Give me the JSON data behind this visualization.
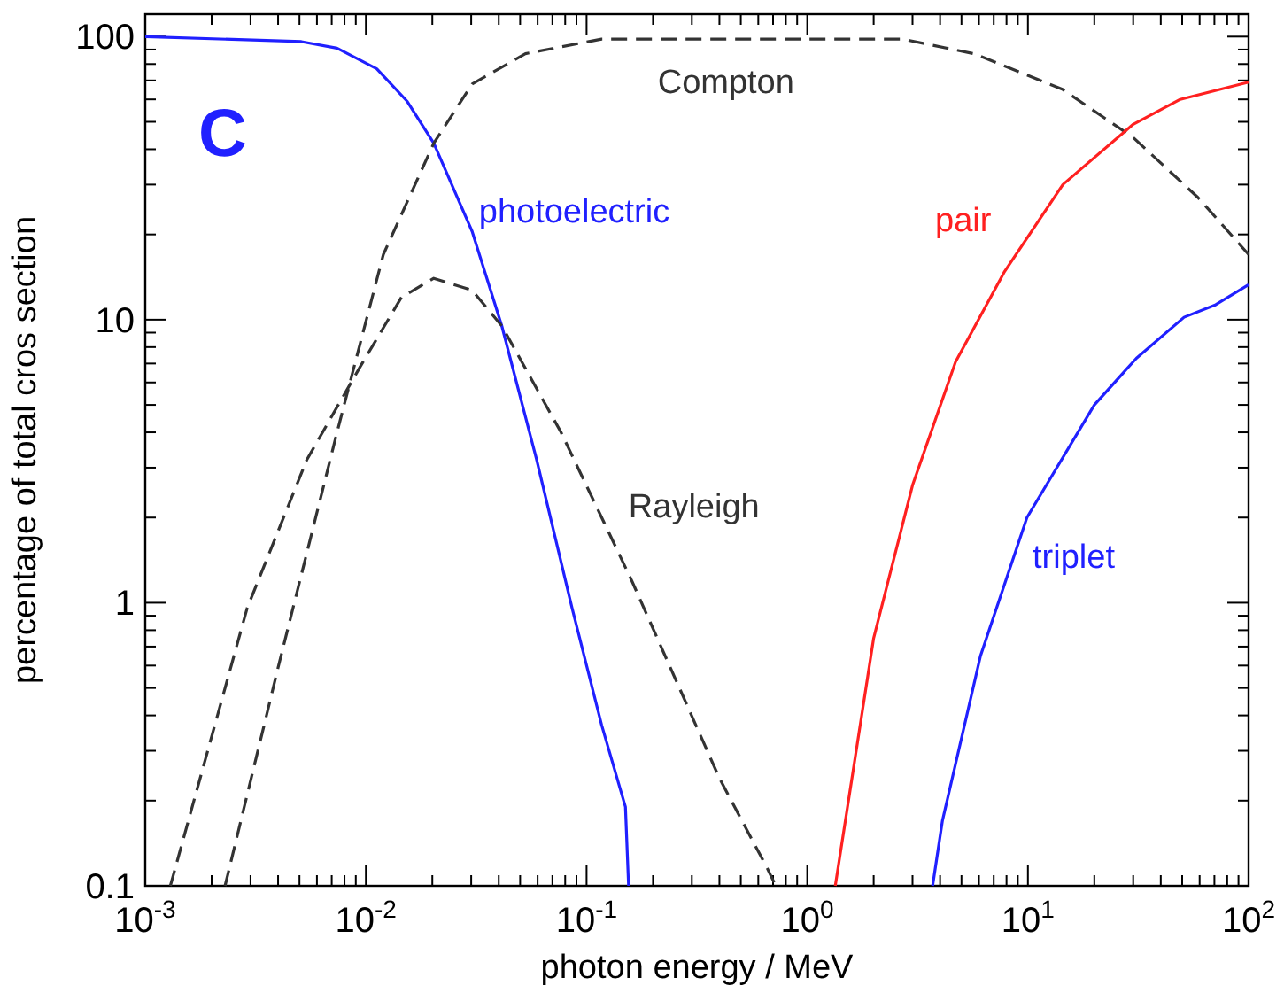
{
  "chart_data": {
    "type": "line",
    "xlabel": "photon energy  / MeV",
    "ylabel": "percentage of total cros section",
    "log": "xy",
    "xlim": [
      0.001,
      100
    ],
    "ylim": [
      0.1,
      120
    ],
    "xticks": [
      {
        "value": 0.001,
        "label": "10$^{-3}$"
      },
      {
        "value": 0.002,
        "label": null
      },
      {
        "value": 0.003,
        "label": null
      },
      {
        "value": 0.004,
        "label": null
      },
      {
        "value": 0.005,
        "label": null
      },
      {
        "value": 0.006,
        "label": null
      },
      {
        "value": 0.007,
        "label": null
      },
      {
        "value": 0.008,
        "label": null
      },
      {
        "value": 0.009,
        "label": null
      },
      {
        "value": 0.01,
        "label": "10$^{-2}$"
      },
      {
        "value": 0.02,
        "label": null
      },
      {
        "value": 0.03,
        "label": null
      },
      {
        "value": 0.04,
        "label": null
      },
      {
        "value": 0.05,
        "label": null
      },
      {
        "value": 0.06,
        "label": null
      },
      {
        "value": 0.07,
        "label": null
      },
      {
        "value": 0.08,
        "label": null
      },
      {
        "value": 0.09,
        "label": null
      },
      {
        "value": 0.1,
        "label": "10$^{-1}$"
      },
      {
        "value": 0.2,
        "label": null
      },
      {
        "value": 0.3,
        "label": null
      },
      {
        "value": 0.4,
        "label": null
      },
      {
        "value": 0.5,
        "label": null
      },
      {
        "value": 0.6,
        "label": null
      },
      {
        "value": 0.7,
        "label": null
      },
      {
        "value": 0.8,
        "label": null
      },
      {
        "value": 0.9,
        "label": null
      },
      {
        "value": 1,
        "label": "10$^{0}$"
      },
      {
        "value": 2,
        "label": null
      },
      {
        "value": 3,
        "label": null
      },
      {
        "value": 4,
        "label": null
      },
      {
        "value": 5,
        "label": null
      },
      {
        "value": 6,
        "label": null
      },
      {
        "value": 7,
        "label": null
      },
      {
        "value": 8,
        "label": null
      },
      {
        "value": 9,
        "label": null
      },
      {
        "value": 10,
        "label": "10$^{1}$"
      },
      {
        "value": 20,
        "label": null
      },
      {
        "value": 30,
        "label": null
      },
      {
        "value": 40,
        "label": null
      },
      {
        "value": 50,
        "label": null
      },
      {
        "value": 60,
        "label": null
      },
      {
        "value": 70,
        "label": null
      },
      {
        "value": 80,
        "label": null
      },
      {
        "value": 90,
        "label": null
      },
      {
        "value": 100,
        "label": "10$^{2}$"
      }
    ],
    "yticks": [
      0.1,
      {
        "value": 0.2,
        "label": null
      },
      {
        "value": 0.3,
        "label": null
      },
      {
        "value": 0.4,
        "label": null
      },
      {
        "value": 0.5,
        "label": null
      },
      {
        "value": 0.6,
        "label": null
      },
      {
        "value": 0.7,
        "label": null
      },
      {
        "value": 0.8,
        "label": null
      },
      {
        "value": 0.9,
        "label": null
      },
      1,
      {
        "value": 2,
        "label": null
      },
      {
        "value": 3,
        "label": null
      },
      {
        "value": 4,
        "label": null
      },
      {
        "value": 5,
        "label": null
      },
      {
        "value": 6,
        "label": null
      },
      {
        "value": 7,
        "label": null
      },
      {
        "value": 8,
        "label": null
      },
      {
        "value": 9,
        "label": null
      },
      10,
      {
        "value": 20,
        "label": null
      },
      {
        "value": 30,
        "label": null
      },
      {
        "value": 40,
        "label": null
      },
      {
        "value": 50,
        "label": null
      },
      {
        "value": 60,
        "label": null
      },
      {
        "value": 70,
        "label": null
      },
      {
        "value": 80,
        "label": null
      },
      {
        "value": 90,
        "label": null
      },
      100
    ],
    "annotations": [
      "C"
    ],
    "series": [
      {
        "name": "photoelectric",
        "color": "#2020ff",
        "x": [
          0.001,
          0.0051,
          0.0074,
          0.0112,
          0.0154,
          0.0203,
          0.0303,
          0.0413,
          0.0594,
          0.0859,
          0.117,
          0.15,
          0.155
        ],
        "values": [
          100,
          96,
          91,
          77,
          59,
          42,
          20.5,
          9.5,
          3.2,
          0.96,
          0.37,
          0.19,
          0.1
        ]
      },
      {
        "name": "Compton",
        "color": "#333333",
        "line_style": "dashed",
        "x": [
          0.0023,
          0.004,
          0.0074,
          0.012,
          0.0203,
          0.0303,
          0.0528,
          0.117,
          2.7,
          5.7,
          14.4,
          30,
          59,
          100
        ],
        "values": [
          0.1,
          0.59,
          4.0,
          17,
          42,
          68,
          87,
          98,
          98,
          87,
          65,
          44,
          27,
          17
        ]
      },
      {
        "name": "Rayleigh",
        "color": "#333333",
        "line_style": "dashed",
        "x": [
          0.0013,
          0.0029,
          0.0054,
          0.0094,
          0.0145,
          0.0203,
          0.0303,
          0.0413,
          0.0766,
          0.16,
          0.4,
          0.66,
          0.72
        ],
        "values": [
          0.1,
          0.96,
          3.2,
          6.8,
          12,
          14,
          12.7,
          9.5,
          4.0,
          1.2,
          0.24,
          0.115,
          0.1
        ]
      },
      {
        "name": "pair",
        "color": "#ff2020",
        "x": [
          1.34,
          2.0,
          3.0,
          4.7,
          7.8,
          14.4,
          30,
          49,
          100
        ],
        "values": [
          0.1,
          0.75,
          2.6,
          7.1,
          14.7,
          30,
          49,
          60,
          69
        ]
      },
      {
        "name": "triplet",
        "color": "#2020ff",
        "x": [
          3.7,
          4.1,
          6.1,
          9.9,
          20,
          31,
          51,
          71,
          100
        ],
        "values": [
          0.1,
          0.17,
          0.65,
          2.0,
          5.0,
          7.3,
          10.2,
          11.3,
          13.3
        ]
      }
    ]
  }
}
